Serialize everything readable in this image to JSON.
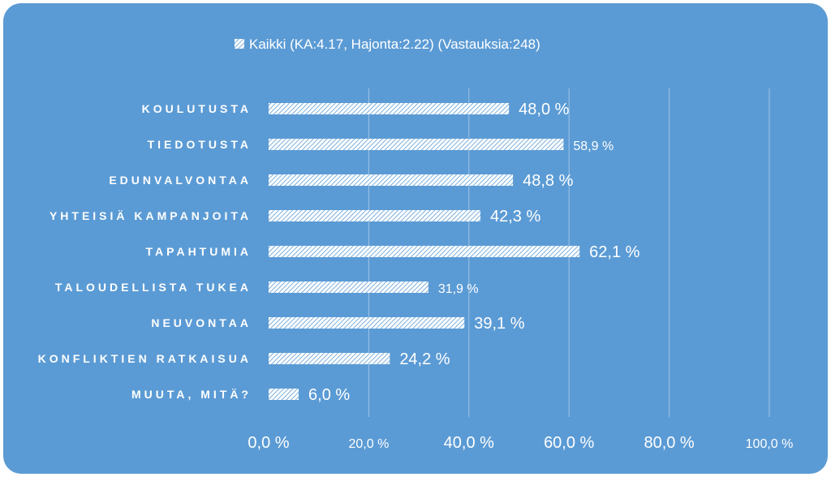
{
  "chart_data": {
    "type": "bar",
    "orientation": "horizontal",
    "legend": "Kaikki (KA:4.17, Hajonta:2.22) (Vastauksia:248)",
    "legend_position": "top",
    "categories": [
      "KOULUTUSTA",
      "TIEDOTUSTA",
      "EDUNVALVONTAA",
      "YHTEISIÄ KAMPANJOITA",
      "TAPAHTUMIA",
      "TALOUDELLISTA TUKEA",
      "NEUVONTAA",
      "KONFLIKTIEN RATKAISUA",
      "MUUTA, MITÄ?"
    ],
    "values": [
      48.0,
      58.9,
      48.8,
      42.3,
      62.1,
      31.9,
      39.1,
      24.2,
      6.0
    ],
    "value_labels": [
      "48,0 %",
      "58,9 %",
      "48,8 %",
      "42,3 %",
      "62,1 %",
      "31,9 %",
      "39,1 %",
      "24,2 %",
      "6,0 %"
    ],
    "xlim": [
      0,
      100
    ],
    "x_ticks": [
      0,
      20,
      40,
      60,
      80,
      100
    ],
    "x_tick_labels": [
      "0,0 %",
      "20,0 %",
      "40,0 %",
      "60,0 %",
      "80,0 %",
      "100,0 %"
    ],
    "grid": true,
    "colors": {
      "background": "#5b9bd5",
      "bar_fill": "#ffffff",
      "bar_hatch": "#5b9bd5",
      "text": "#ffffff",
      "gridline": "#9fc3e6"
    }
  }
}
